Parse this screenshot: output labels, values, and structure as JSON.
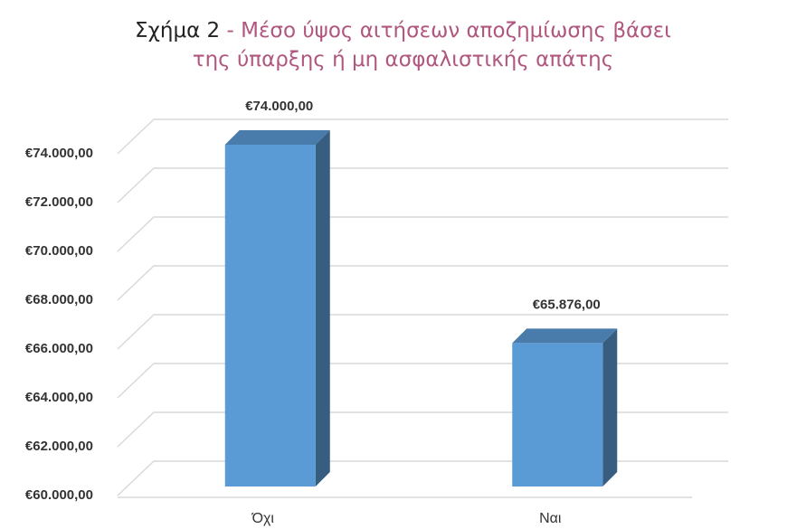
{
  "chart_data": {
    "type": "bar3d",
    "figure_label": "Σχήμα 2",
    "title": [
      "- Μέσο ύψος αιτήσεων αποζημίωσης βάσει",
      "της ύπαρξης ή μη ασφαλιστικής απάτης"
    ],
    "categories": [
      "Όχι",
      "Ναι"
    ],
    "values": [
      74000,
      65876
    ],
    "value_labels": [
      "€74.000,00",
      "€65.876,00"
    ],
    "color": "#5b9bd5",
    "ylim": [
      60000,
      74000
    ],
    "yticks": [
      {
        "value": 60000,
        "label": "€60.000,00"
      },
      {
        "value": 62000,
        "label": "€62.000,00"
      },
      {
        "value": 64000,
        "label": "€64.000,00"
      },
      {
        "value": 66000,
        "label": "€66.000,00"
      },
      {
        "value": 68000,
        "label": "€68.000,00"
      },
      {
        "value": 70000,
        "label": "€70.000,00"
      },
      {
        "value": 72000,
        "label": "€72.000,00"
      },
      {
        "value": 74000,
        "label": "€74.000,00"
      }
    ],
    "grid": true
  }
}
